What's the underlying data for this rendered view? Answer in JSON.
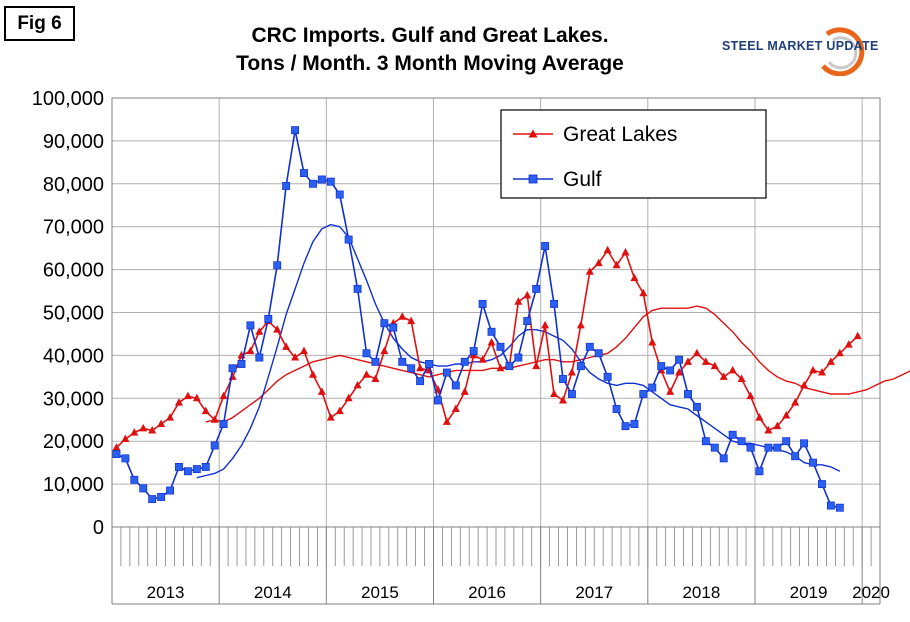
{
  "fig_label": "Fig 6",
  "title_line1": "CRC Imports. Gulf and Great Lakes.",
  "title_line2": "Tons / Month. 3 Month Moving Average",
  "logo_text": "STEEL MARKET UPDATE",
  "colors": {
    "great_lakes": "#e01010",
    "gulf": "#1030d0",
    "gulf_marker": "#2b5ff0",
    "logo_orange": "#e8651a",
    "logo_blue": "#1f3f7a"
  },
  "chart_data": {
    "type": "line",
    "title": "CRC Imports. Gulf and Great Lakes. Tons / Month. 3 Month Moving Average",
    "ylim": [
      0,
      100000
    ],
    "yticks": [
      0,
      10000,
      20000,
      30000,
      40000,
      50000,
      60000,
      70000,
      80000,
      90000,
      100000
    ],
    "ytick_labels": [
      "0",
      "10,000",
      "20,000",
      "30,000",
      "40,000",
      "50,000",
      "60,000",
      "70,000",
      "80,000",
      "90,000",
      "100,000"
    ],
    "x_unit": "month index from Jan 2013",
    "xlim": [
      -0.5,
      85.5
    ],
    "year_labels": [
      "2013",
      "2014",
      "2015",
      "2016",
      "2017",
      "2018",
      "2019",
      "2020"
    ],
    "grid": true,
    "legend_position": "top-right",
    "legend": [
      "Great Lakes",
      "Gulf"
    ],
    "series": [
      {
        "name": "Great Lakes",
        "marker": "triangle",
        "values": [
          18500,
          20500,
          22000,
          23000,
          22500,
          24000,
          25500,
          29000,
          30500,
          30000,
          27000,
          25000,
          30500,
          35000,
          40000,
          41000,
          45500,
          48000,
          46000,
          42000,
          39500,
          41000,
          35500,
          31500,
          25500,
          27000,
          30000,
          33000,
          35500,
          34500,
          41000,
          47500,
          49000,
          48000,
          37000,
          36500,
          32000,
          24500,
          27500,
          31500,
          40000,
          39000,
          43000,
          37000,
          37500,
          52500,
          54000,
          37500,
          47000,
          31000,
          29500,
          36000,
          47000,
          59500,
          61500,
          64500,
          61000,
          64000,
          58000,
          54500,
          43000,
          36500,
          31500,
          36000,
          38500,
          40500,
          38500,
          37500,
          35000,
          36500,
          34500,
          30500,
          25500,
          22500,
          23500,
          26000,
          29000,
          33000,
          36500,
          36000,
          38500,
          40500,
          42500,
          44500
        ],
        "moving_average": {
          "start_index": 10,
          "values": [
            24500,
            25000,
            24500,
            25500,
            27000,
            28500,
            30000,
            32000,
            34000,
            35500,
            36500,
            37500,
            38500,
            39000,
            39500,
            40000,
            39500,
            39000,
            38500,
            38000,
            37500,
            37000,
            36500,
            36000,
            35500,
            35000,
            35500,
            36000,
            36500,
            36500,
            36500,
            36500,
            37000,
            37000,
            37000,
            37500,
            38000,
            38500,
            39000,
            39000,
            38500,
            38500,
            39000,
            39500,
            40000,
            40500,
            42000,
            44000,
            46500,
            49000,
            50500,
            51000,
            51000,
            51000,
            51000,
            51500,
            51000,
            49500,
            47500,
            45500,
            43000,
            41000,
            38500,
            36500,
            35000,
            34000,
            33500,
            32500,
            32000,
            31500,
            31000,
            31000,
            31000,
            31500,
            32000,
            33000,
            34000,
            34500,
            35500,
            36500,
            38000,
            39000
          ]
        }
      },
      {
        "name": "Gulf",
        "marker": "square",
        "values": [
          17000,
          16000,
          11000,
          9000,
          6500,
          7000,
          8500,
          14000,
          13000,
          13500,
          14000,
          19000,
          24000,
          37000,
          38000,
          47000,
          39500,
          48500,
          61000,
          79500,
          92500,
          82500,
          80000,
          81000,
          80500,
          77500,
          67000,
          55500,
          40500,
          38500,
          47500,
          46500,
          38500,
          37000,
          34000,
          38000,
          29500,
          36000,
          33000,
          38500,
          41000,
          52000,
          45500,
          42000,
          37500,
          39500,
          48000,
          55500,
          65500,
          52000,
          34500,
          31000,
          37500,
          42000,
          40500,
          35000,
          27500,
          23500,
          24000,
          31000,
          32500,
          37500,
          36500,
          39000,
          31000,
          28000,
          20000,
          18500,
          16000,
          21500,
          20000,
          18500,
          13000,
          18500,
          18500,
          20000,
          16500,
          19500,
          15000,
          10000,
          5000,
          4500
        ],
        "moving_average": {
          "start_index": 9,
          "values": [
            11500,
            12000,
            12500,
            13500,
            16000,
            19000,
            23000,
            28000,
            35000,
            42000,
            49500,
            55500,
            61500,
            66500,
            69500,
            70500,
            70000,
            67500,
            62500,
            57500,
            52000,
            47500,
            44000,
            41500,
            39500,
            38500,
            38000,
            37500,
            37500,
            38000,
            38000,
            38500,
            38500,
            39000,
            40000,
            42000,
            44500,
            46000,
            46000,
            45500,
            44500,
            43500,
            41500,
            38500,
            36000,
            34500,
            33500,
            33000,
            33500,
            33500,
            33000,
            31500,
            30000,
            28500,
            28000,
            27500,
            26000,
            24500,
            23000,
            21500,
            20000,
            19500,
            19500,
            19000,
            18500,
            18000,
            17500,
            16500,
            15000,
            14500,
            14500,
            14000,
            13000
          ]
        }
      }
    ]
  }
}
